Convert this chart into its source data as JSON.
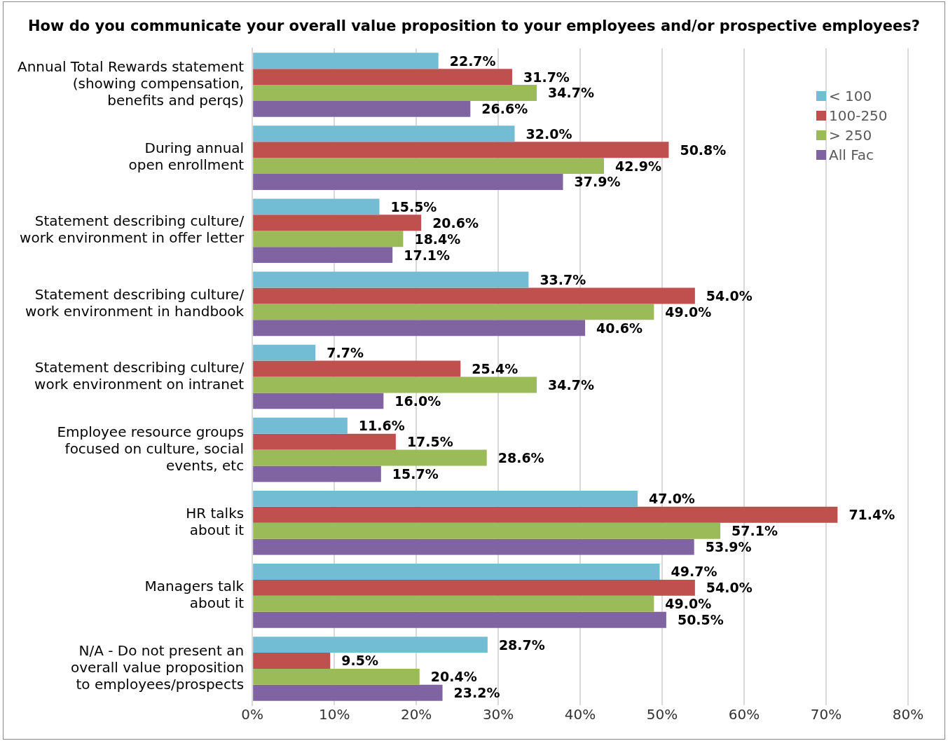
{
  "chart_data": {
    "type": "bar",
    "orientation": "horizontal",
    "title": "How do you communicate your overall value proposition to your employees and/or prospective employees?",
    "categories": [
      "Annual Total Rewards statement\n(showing compensation,\nbenefits and perqs)",
      "During annual\nopen enrollment",
      "Statement describing culture/\nwork environment in offer letter",
      "Statement describing culture/\nwork environment in handbook",
      "Statement describing culture/\nwork environment on intranet",
      "Employee resource groups\nfocused on culture, social\nevents, etc",
      "HR talks\nabout it",
      "Managers talk\nabout it",
      "N/A - Do not present an\noverall value proposition\nto employees/prospects"
    ],
    "series": [
      {
        "name": "< 100",
        "color": "#72bcd4",
        "values": [
          22.7,
          32.0,
          15.5,
          33.7,
          7.7,
          11.6,
          47.0,
          49.7,
          28.7
        ],
        "value_labels": [
          "22.7%",
          "32.0%",
          "15.5%",
          "33.7%",
          "7.7%",
          "11.6%",
          "47.0%",
          "49.7%",
          "28.7%"
        ]
      },
      {
        "name": "100-250",
        "color": "#c0504d",
        "values": [
          31.7,
          50.8,
          20.6,
          54.0,
          25.4,
          17.5,
          71.4,
          54.0,
          9.5
        ],
        "value_labels": [
          "31.7%",
          "50.8%",
          "20.6%",
          "54.0%",
          "25.4%",
          "17.5%",
          "71.4%",
          "54.0%",
          "9.5%"
        ]
      },
      {
        "name": "> 250",
        "color": "#9bbb59",
        "values": [
          34.7,
          42.9,
          18.4,
          49.0,
          34.7,
          28.6,
          57.1,
          49.0,
          20.4
        ],
        "value_labels": [
          "34.7%",
          "42.9%",
          "18.4%",
          "49.0%",
          "34.7%",
          "28.6%",
          "57.1%",
          "49.0%",
          "20.4%"
        ]
      },
      {
        "name": "All Fac",
        "color": "#8064a2",
        "values": [
          26.6,
          37.9,
          17.1,
          40.6,
          16.0,
          15.7,
          53.9,
          50.5,
          23.2
        ],
        "value_labels": [
          "26.6%",
          "37.9%",
          "17.1%",
          "40.6%",
          "16.0%",
          "15.7%",
          "53.9%",
          "50.5%",
          "23.2%"
        ]
      }
    ],
    "xlim": [
      0,
      80
    ],
    "xticks": [
      {
        "value": 0,
        "label": "0%"
      },
      {
        "value": 10,
        "label": "10%"
      },
      {
        "value": 20,
        "label": "20%"
      },
      {
        "value": 30,
        "label": "30%"
      },
      {
        "value": 40,
        "label": "40%"
      },
      {
        "value": 50,
        "label": "50%"
      },
      {
        "value": 60,
        "label": "60%"
      },
      {
        "value": 70,
        "label": "70%"
      },
      {
        "value": 80,
        "label": "80%"
      }
    ],
    "grid": "x",
    "legend": "top right"
  }
}
